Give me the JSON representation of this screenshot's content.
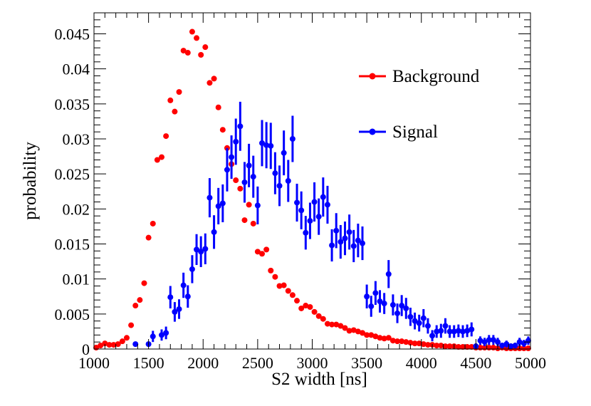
{
  "chart_data": {
    "type": "scatter",
    "title": "",
    "xlabel": "S2 width [ns]",
    "ylabel": "probability",
    "xlim": [
      1000,
      5000
    ],
    "ylim": [
      0,
      0.048
    ],
    "x_ticks": [
      1000,
      1500,
      2000,
      2500,
      3000,
      3500,
      4000,
      4500,
      5000
    ],
    "x_tick_labels": [
      "1000",
      "1500",
      "2000",
      "2500",
      "3000",
      "3500",
      "4000",
      "4500",
      "5000"
    ],
    "y_ticks": [
      0,
      0.005,
      0.01,
      0.015,
      0.02,
      0.025,
      0.03,
      0.035,
      0.04,
      0.045
    ],
    "y_tick_labels": [
      "0",
      "0.005",
      "0.01",
      "0.015",
      "0.02",
      "0.025",
      "0.03",
      "0.035",
      "0.04",
      "0.045"
    ],
    "grid": false,
    "legend_position": "top-right",
    "series": [
      {
        "name": "Background",
        "color": "#ff0000",
        "marker": "circle",
        "error_bars": false,
        "x": [
          1020,
          1060,
          1100,
          1140,
          1180,
          1220,
          1260,
          1300,
          1340,
          1380,
          1420,
          1460,
          1500,
          1540,
          1580,
          1620,
          1660,
          1700,
          1740,
          1780,
          1820,
          1860,
          1900,
          1940,
          1980,
          2020,
          2060,
          2100,
          2140,
          2180,
          2220,
          2260,
          2300,
          2340,
          2380,
          2420,
          2460,
          2500,
          2540,
          2580,
          2620,
          2660,
          2700,
          2740,
          2780,
          2820,
          2860,
          2900,
          2940,
          2980,
          3020,
          3060,
          3100,
          3140,
          3180,
          3220,
          3260,
          3300,
          3340,
          3380,
          3420,
          3460,
          3500,
          3540,
          3580,
          3620,
          3660,
          3700,
          3740,
          3780,
          3820,
          3860,
          3900,
          3940,
          3980,
          4020,
          4060,
          4100,
          4140,
          4180,
          4220,
          4260,
          4300,
          4340,
          4380,
          4420,
          4460,
          4500,
          4540,
          4580,
          4620,
          4660,
          4700,
          4740,
          4780,
          4820,
          4860,
          4900,
          4940,
          4980
        ],
        "y": [
          0.0002,
          0.0005,
          0.0008,
          0.0006,
          0.0006,
          0.0007,
          0.0011,
          0.0016,
          0.0034,
          0.0062,
          0.007,
          0.0094,
          0.0159,
          0.0179,
          0.027,
          0.0274,
          0.0304,
          0.0355,
          0.0339,
          0.0367,
          0.0426,
          0.0423,
          0.0453,
          0.0444,
          0.042,
          0.0431,
          0.038,
          0.0386,
          0.0345,
          0.0313,
          0.0287,
          0.0264,
          0.0241,
          0.0229,
          0.0184,
          0.0206,
          0.0179,
          0.0139,
          0.0136,
          0.0142,
          0.0112,
          0.0103,
          0.009,
          0.0091,
          0.0083,
          0.0077,
          0.0069,
          0.0058,
          0.0062,
          0.006,
          0.0053,
          0.0047,
          0.0043,
          0.0036,
          0.0035,
          0.0035,
          0.0033,
          0.003,
          0.0026,
          0.0027,
          0.0025,
          0.0023,
          0.002,
          0.002,
          0.0018,
          0.0016,
          0.0015,
          0.0016,
          0.0012,
          0.0011,
          0.0011,
          0.001,
          0.0009,
          0.0008,
          0.0008,
          0.0007,
          0.0006,
          0.0006,
          0.0005,
          0.0005,
          0.0004,
          0.0004,
          0.0004,
          0.0003,
          0.0003,
          0.0003,
          0.0003,
          0.0002,
          0.0002,
          0.0002,
          0.0002,
          0.0002,
          0.0001,
          0.0002,
          0.0001,
          0.0001,
          0.0001,
          0.0001,
          0.0001,
          0.0001
        ]
      },
      {
        "name": "Signal",
        "color": "#0000ff",
        "marker": "circle",
        "error_bars": true,
        "x": [
          1380,
          1500,
          1540,
          1620,
          1660,
          1700,
          1740,
          1780,
          1820,
          1860,
          1900,
          1940,
          1980,
          2020,
          2060,
          2100,
          2140,
          2180,
          2220,
          2260,
          2300,
          2340,
          2380,
          2420,
          2460,
          2500,
          2540,
          2580,
          2620,
          2660,
          2700,
          2740,
          2780,
          2820,
          2860,
          2900,
          2940,
          2980,
          3020,
          3060,
          3100,
          3140,
          3180,
          3220,
          3260,
          3300,
          3340,
          3380,
          3420,
          3460,
          3500,
          3540,
          3580,
          3620,
          3660,
          3700,
          3740,
          3780,
          3820,
          3860,
          3900,
          3940,
          3980,
          4020,
          4060,
          4100,
          4140,
          4180,
          4220,
          4260,
          4300,
          4340,
          4380,
          4420,
          4460,
          4500,
          4540,
          4580,
          4620,
          4660,
          4700,
          4740,
          4780,
          4820,
          4860,
          4900,
          4940,
          4980
        ],
        "y": [
          0.0007,
          0.0007,
          0.0018,
          0.002,
          0.0023,
          0.0074,
          0.0053,
          0.0057,
          0.0091,
          0.0075,
          0.0114,
          0.0142,
          0.0139,
          0.0143,
          0.0216,
          0.0167,
          0.0204,
          0.0208,
          0.0256,
          0.0274,
          0.0296,
          0.0318,
          0.0238,
          0.0262,
          0.0246,
          0.0205,
          0.0294,
          0.0291,
          0.029,
          0.0251,
          0.0233,
          0.028,
          0.024,
          0.03,
          0.0209,
          0.0198,
          0.0166,
          0.0183,
          0.021,
          0.0189,
          0.0217,
          0.0206,
          0.0148,
          0.0169,
          0.0153,
          0.0158,
          0.0167,
          0.0147,
          0.0155,
          0.0151,
          0.0075,
          0.0061,
          0.008,
          0.0068,
          0.0065,
          0.0107,
          0.0063,
          0.0051,
          0.0062,
          0.0058,
          0.0046,
          0.004,
          0.0037,
          0.0044,
          0.0033,
          0.0019,
          0.0025,
          0.0026,
          0.0033,
          0.0025,
          0.0025,
          0.0026,
          0.0025,
          0.0026,
          0.0028,
          0.0004,
          0.0012,
          0.001,
          0.0013,
          0.0013,
          0.001,
          0.0005,
          0.0007,
          0.0004,
          0.0005,
          0.001,
          0.0008,
          0.0012
        ],
        "err": [
          0.0003,
          0.0003,
          0.0008,
          0.0008,
          0.0009,
          0.0016,
          0.0014,
          0.0014,
          0.0018,
          0.0016,
          0.002,
          0.0022,
          0.0022,
          0.0022,
          0.0028,
          0.0024,
          0.0026,
          0.0027,
          0.0031,
          0.0031,
          0.0033,
          0.0035,
          0.0029,
          0.0031,
          0.003,
          0.0027,
          0.0033,
          0.0033,
          0.0033,
          0.003,
          0.0029,
          0.0032,
          0.003,
          0.0033,
          0.0027,
          0.0027,
          0.0024,
          0.0026,
          0.0028,
          0.0026,
          0.0028,
          0.0027,
          0.0023,
          0.0025,
          0.0024,
          0.0024,
          0.0025,
          0.0023,
          0.0024,
          0.0024,
          0.0017,
          0.0015,
          0.0017,
          0.0016,
          0.0015,
          0.002,
          0.0015,
          0.0014,
          0.0015,
          0.0015,
          0.0013,
          0.0012,
          0.0012,
          0.0013,
          0.0011,
          0.0008,
          0.0009,
          0.001,
          0.0011,
          0.0009,
          0.0009,
          0.0009,
          0.0009,
          0.0009,
          0.001,
          0.0004,
          0.0006,
          0.0006,
          0.0007,
          0.0007,
          0.0006,
          0.0004,
          0.0005,
          0.0004,
          0.0004,
          0.0006,
          0.0005,
          0.0006
        ]
      }
    ]
  }
}
